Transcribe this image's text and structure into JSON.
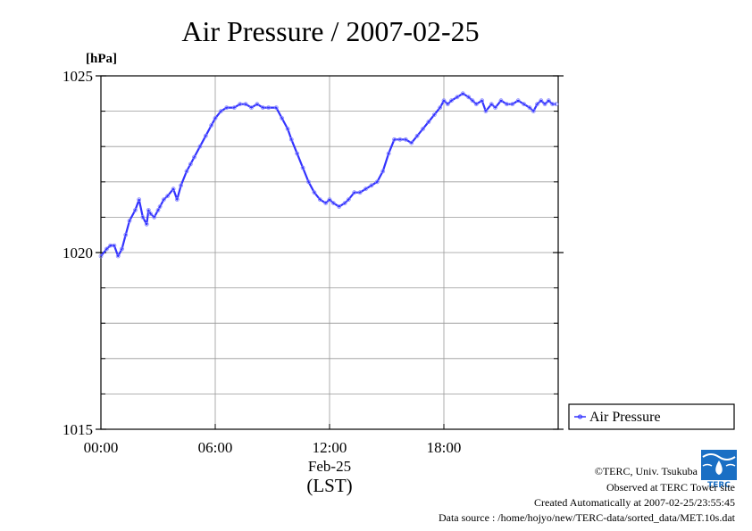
{
  "chart_data": {
    "type": "line",
    "title": "Air Pressure / 2007-02-25",
    "ylabel": "[hPa]",
    "xlabel_date": "Feb-25",
    "xlabel_zone": "(LST)",
    "ylim": [
      1015,
      1025
    ],
    "y_major_ticks": [
      1015,
      1020,
      1025
    ],
    "y_tick_labels": [
      "1015",
      "1020",
      "1025"
    ],
    "y_grid_step": 1,
    "xlim": [
      0,
      24
    ],
    "x_ticks": [
      0,
      6,
      12,
      18
    ],
    "x_tick_labels": [
      "00:00",
      "06:00",
      "12:00",
      "18:00"
    ],
    "grid": true,
    "legend_position": "right",
    "series": [
      {
        "name": "Air Pressure",
        "color": "#3333ff",
        "x": [
          0.0,
          0.3,
          0.5,
          0.7,
          0.9,
          1.1,
          1.3,
          1.5,
          1.8,
          2.0,
          2.2,
          2.4,
          2.5,
          2.6,
          2.8,
          3.0,
          3.1,
          3.3,
          3.5,
          3.8,
          4.0,
          4.2,
          4.5,
          4.7,
          4.9,
          5.2,
          5.5,
          5.8,
          6.0,
          6.3,
          6.6,
          7.0,
          7.3,
          7.6,
          7.9,
          8.2,
          8.5,
          8.8,
          9.2,
          9.5,
          9.8,
          10.0,
          10.3,
          10.6,
          10.9,
          11.2,
          11.5,
          11.8,
          12.0,
          12.2,
          12.5,
          12.8,
          13.0,
          13.3,
          13.6,
          13.9,
          14.2,
          14.5,
          14.8,
          15.1,
          15.4,
          15.7,
          16.0,
          16.3,
          16.6,
          16.9,
          17.2,
          17.5,
          17.8,
          18.0,
          18.2,
          18.4,
          18.7,
          19.0,
          19.3,
          19.5,
          19.7,
          20.0,
          20.2,
          20.5,
          20.7,
          21.0,
          21.3,
          21.6,
          21.9,
          22.2,
          22.5,
          22.7,
          22.9,
          23.1,
          23.3,
          23.5,
          23.7,
          23.9
        ],
        "y": [
          1019.9,
          1020.1,
          1020.2,
          1020.2,
          1019.9,
          1020.1,
          1020.5,
          1020.9,
          1021.2,
          1021.5,
          1021.0,
          1020.8,
          1021.2,
          1021.1,
          1021.0,
          1021.2,
          1021.3,
          1021.5,
          1021.6,
          1021.8,
          1021.5,
          1021.9,
          1022.3,
          1022.5,
          1022.7,
          1023.0,
          1023.3,
          1023.6,
          1023.8,
          1024.0,
          1024.1,
          1024.1,
          1024.2,
          1024.2,
          1024.1,
          1024.2,
          1024.1,
          1024.1,
          1024.1,
          1023.8,
          1023.5,
          1023.2,
          1022.8,
          1022.4,
          1022.0,
          1021.7,
          1021.5,
          1021.4,
          1021.5,
          1021.4,
          1021.3,
          1021.4,
          1021.5,
          1021.7,
          1021.7,
          1021.8,
          1021.9,
          1022.0,
          1022.3,
          1022.8,
          1023.2,
          1023.2,
          1023.2,
          1023.1,
          1023.3,
          1023.5,
          1023.7,
          1023.9,
          1024.1,
          1024.3,
          1024.2,
          1024.3,
          1024.4,
          1024.5,
          1024.4,
          1024.3,
          1024.2,
          1024.3,
          1024.0,
          1024.2,
          1024.1,
          1024.3,
          1024.2,
          1024.2,
          1024.3,
          1024.2,
          1024.1,
          1024.0,
          1024.2,
          1024.3,
          1024.2,
          1024.3,
          1024.2,
          1024.2
        ]
      }
    ]
  },
  "footer": {
    "copyright": "©TERC, Univ. Tsukuba",
    "observed": "Observed at TERC Tower site",
    "created": "Created Automatically at 2007-02-25/23:55:45",
    "source": "Data source : /home/hojyo/new/TERC-data/sorted_data/MET.10s.dat",
    "logo_text": "TERC"
  }
}
